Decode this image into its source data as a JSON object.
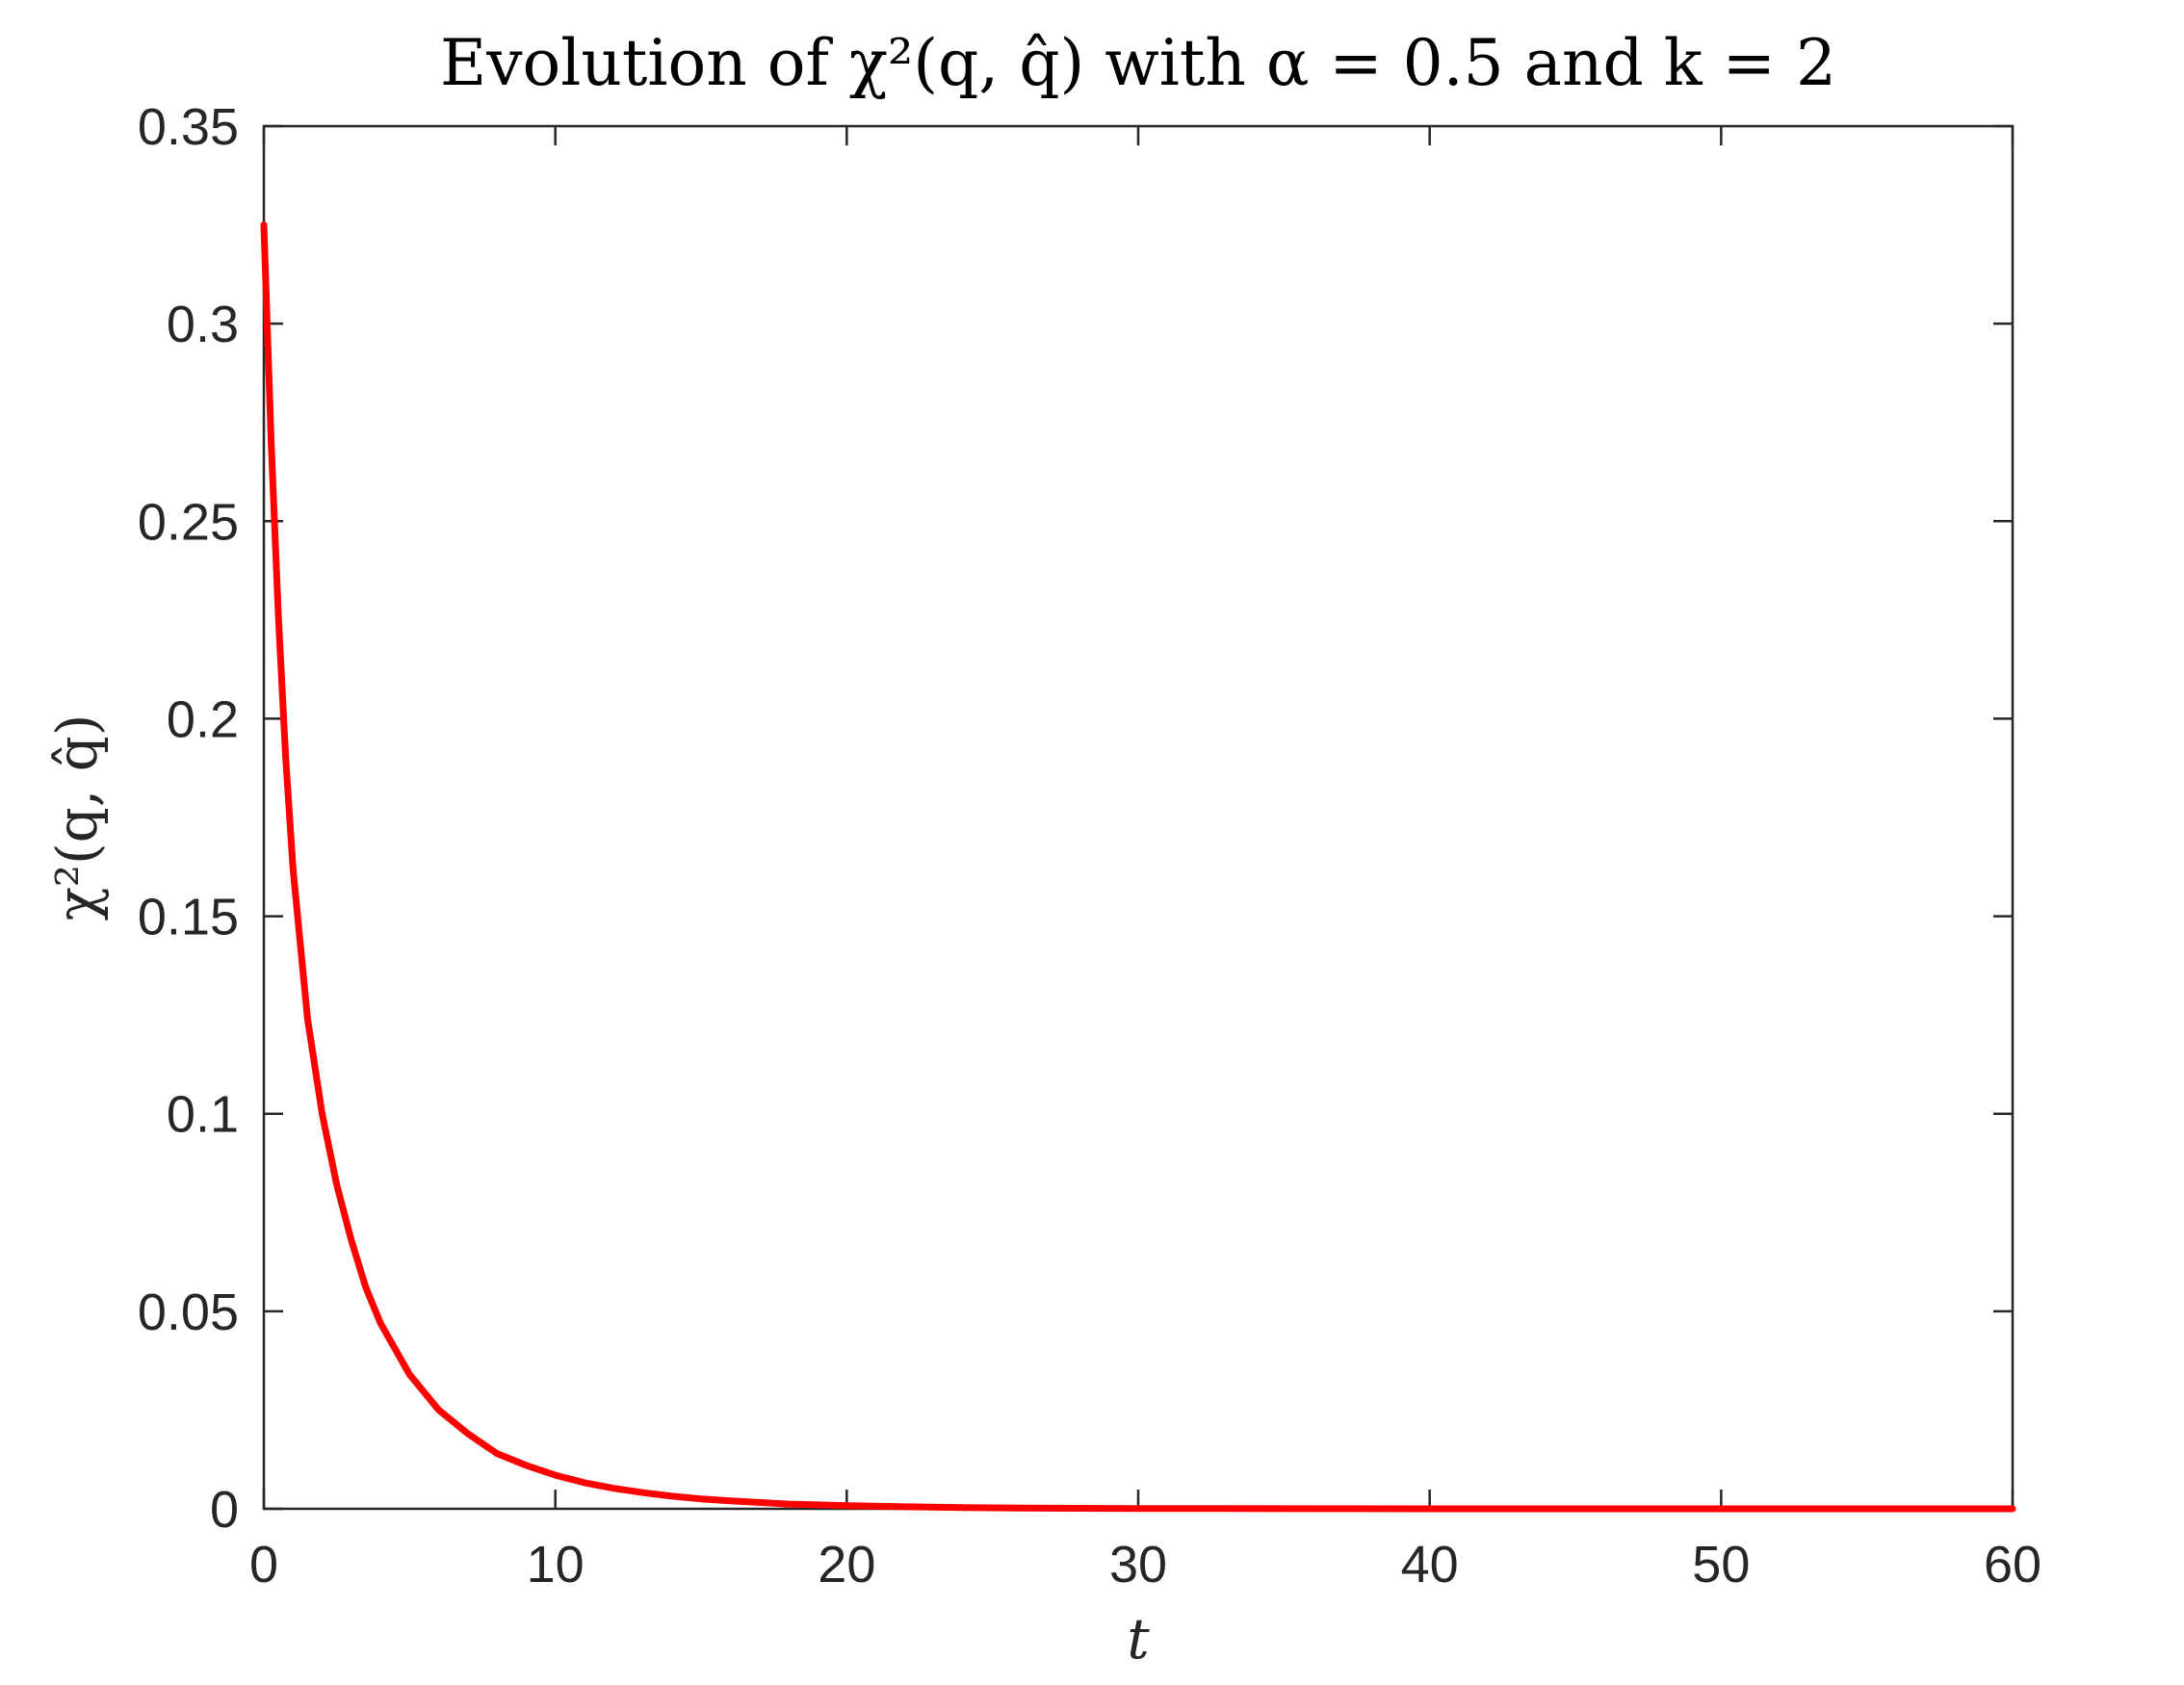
{
  "chart_data": {
    "type": "line",
    "title": "Evolution of χ²(q, q̂) with α = 0.5 and k = 2",
    "xlabel": "t",
    "ylabel": "χ²(q, q̂)",
    "xlim": [
      0,
      60
    ],
    "ylim": [
      0,
      0.35
    ],
    "xticks": [
      0,
      10,
      20,
      30,
      40,
      50,
      60
    ],
    "yticks": [
      0,
      0.05,
      0.1,
      0.15,
      0.2,
      0.25,
      0.3,
      0.35
    ],
    "xtick_labels": [
      "0",
      "10",
      "20",
      "30",
      "40",
      "50",
      "60"
    ],
    "ytick_labels": [
      "0",
      "0.05",
      "0.1",
      "0.15",
      "0.2",
      "0.25",
      "0.3",
      "0.35"
    ],
    "grid": false,
    "series": [
      {
        "color": "#ff0000",
        "x": [
          0,
          0.25,
          0.5,
          0.75,
          1,
          1.5,
          2,
          2.5,
          3,
          3.5,
          4,
          5,
          6,
          7,
          8,
          9,
          10,
          11,
          12,
          13,
          14,
          15,
          16,
          17,
          18,
          19,
          20,
          22,
          24,
          26,
          28,
          30,
          33,
          36,
          40,
          45,
          50,
          55,
          60
        ],
        "y": [
          0.325,
          0.27,
          0.226,
          0.19,
          0.162,
          0.124,
          0.1,
          0.082,
          0.068,
          0.056,
          0.047,
          0.034,
          0.025,
          0.019,
          0.014,
          0.011,
          0.0085,
          0.0066,
          0.0052,
          0.0041,
          0.0032,
          0.0025,
          0.002,
          0.0016,
          0.0012,
          0.001,
          0.0008,
          0.0005,
          0.0003,
          0.0002,
          0.00013,
          8e-05,
          4e-05,
          2e-05,
          8e-06,
          3e-06,
          1e-06,
          5e-07,
          2e-07
        ]
      }
    ]
  }
}
